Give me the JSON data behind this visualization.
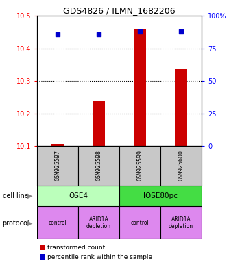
{
  "title": "GDS4826 / ILMN_1682206",
  "samples": [
    "GSM925597",
    "GSM925598",
    "GSM925599",
    "GSM925600"
  ],
  "bar_values": [
    10.107,
    10.24,
    10.46,
    10.335
  ],
  "bar_bottom": 10.1,
  "dot_values": [
    86,
    86,
    88,
    88
  ],
  "ylim_left": [
    10.1,
    10.5
  ],
  "ylim_right": [
    0,
    100
  ],
  "yticks_left": [
    10.1,
    10.2,
    10.3,
    10.4,
    10.5
  ],
  "yticks_right": [
    0,
    25,
    50,
    75,
    100
  ],
  "ytick_labels_right": [
    "0",
    "25",
    "50",
    "75",
    "100%"
  ],
  "bar_color": "#cc0000",
  "dot_color": "#0000cc",
  "cell_line_colors": [
    "#bbffbb",
    "#44dd44"
  ],
  "protocol_color": "#dd88ee",
  "sample_bg_color": "#c8c8c8",
  "cell_lines": [
    "OSE4",
    "IOSE80pc"
  ],
  "protocols": [
    "control",
    "ARID1A\ndepletion",
    "control",
    "ARID1A\ndepletion"
  ],
  "legend_bar_label": "transformed count",
  "legend_dot_label": "percentile rank within the sample"
}
